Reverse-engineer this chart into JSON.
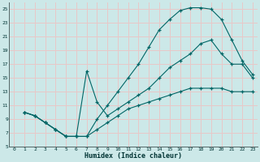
{
  "xlabel": "Humidex (Indice chaleur)",
  "bg_color": "#cce8e8",
  "grid_major_color": "#e8c8c8",
  "grid_minor_color": "#dde8e8",
  "line_color": "#006666",
  "xlim": [
    -0.5,
    23.5
  ],
  "ylim": [
    5,
    26
  ],
  "xticks": [
    0,
    1,
    2,
    3,
    4,
    5,
    6,
    7,
    8,
    9,
    10,
    11,
    12,
    13,
    14,
    15,
    16,
    17,
    18,
    19,
    20,
    21,
    22,
    23
  ],
  "yticks": [
    5,
    7,
    9,
    11,
    13,
    15,
    17,
    19,
    21,
    23,
    25
  ],
  "curve1_x": [
    1,
    2,
    3,
    4,
    5,
    6,
    7,
    8,
    9,
    10,
    11,
    12,
    13,
    14,
    15,
    16,
    17,
    18,
    19,
    20,
    21,
    22,
    23
  ],
  "curve1_y": [
    10,
    9.5,
    8.5,
    7.5,
    6.5,
    6.5,
    6.5,
    9,
    11,
    13,
    15,
    17,
    19.5,
    22,
    23.5,
    24.8,
    25.2,
    25.2,
    25,
    23.5,
    20.5,
    17.5,
    15.5
  ],
  "curve2_x": [
    1,
    2,
    3,
    4,
    5,
    6,
    7,
    8,
    9,
    10,
    11,
    12,
    13,
    14,
    15,
    16,
    17,
    18,
    19,
    20,
    21,
    22,
    23
  ],
  "curve2_y": [
    10,
    9.5,
    8.5,
    7.5,
    6.5,
    6.5,
    16,
    11.5,
    9.5,
    10.5,
    11.5,
    12.5,
    13.5,
    15,
    16.5,
    17.5,
    18.5,
    20,
    20.5,
    18.5,
    17,
    17,
    15
  ],
  "curve3_x": [
    1,
    2,
    3,
    4,
    5,
    6,
    7,
    8,
    9,
    10,
    11,
    12,
    13,
    14,
    15,
    16,
    17,
    18,
    19,
    20,
    21,
    22,
    23
  ],
  "curve3_y": [
    10,
    9.5,
    8.5,
    7.5,
    6.5,
    6.5,
    6.5,
    7.5,
    8.5,
    9.5,
    10.5,
    11,
    11.5,
    12,
    12.5,
    13,
    13.5,
    13.5,
    13.5,
    13.5,
    13,
    13,
    13
  ]
}
